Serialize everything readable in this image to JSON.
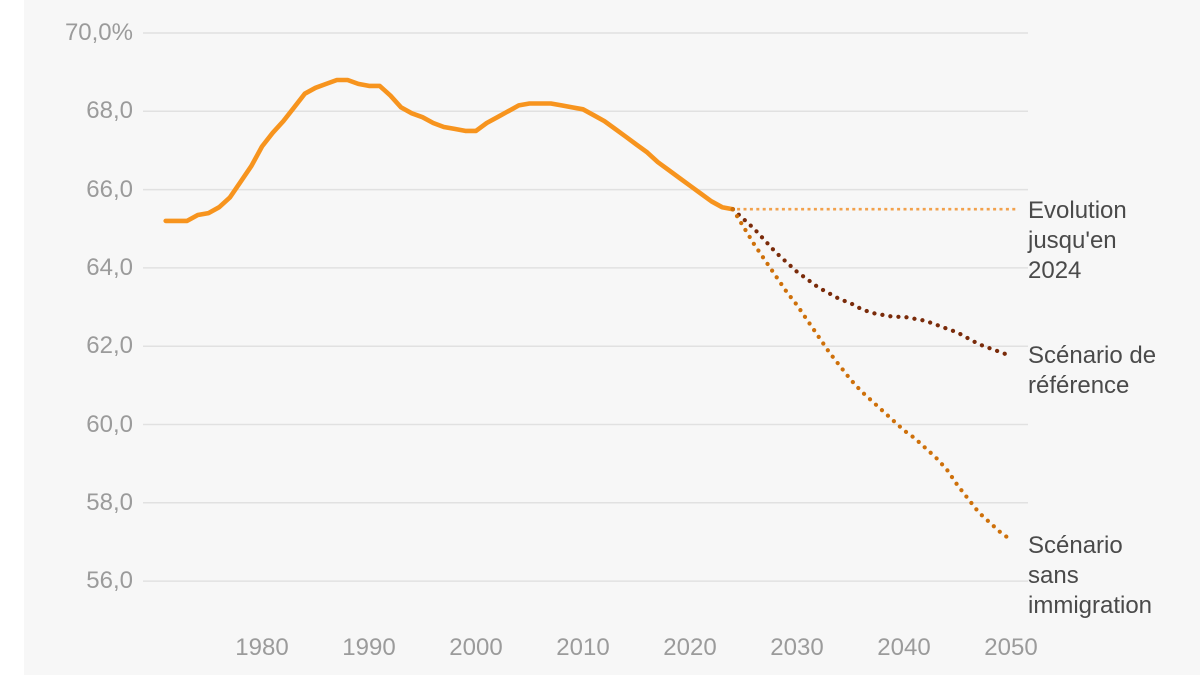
{
  "chart_data": {
    "type": "line",
    "title": "",
    "xlabel": "",
    "ylabel": "",
    "unit": "%",
    "xlim": [
      1969,
      2052
    ],
    "ylim": [
      55.5,
      70.0
    ],
    "grid": true,
    "legend_position": "right-annotations",
    "gridline_color": "#e1e1e1",
    "tick_text_color": "#9b9b9b",
    "annotation_text_color": "#4a4a4a",
    "y_ticks": [
      70,
      68,
      66,
      64,
      62,
      60,
      58,
      56
    ],
    "y_tick_labels": [
      "70,0%",
      "68,0",
      "66,0",
      "64,0",
      "62,0",
      "60,0",
      "58,0",
      "56,0"
    ],
    "x_ticks": [
      1980,
      1990,
      2000,
      2010,
      2020,
      2030,
      2040,
      2050
    ],
    "x_tick_labels": [
      "1980",
      "1990",
      "2000",
      "2010",
      "2020",
      "2030",
      "2040",
      "2050"
    ],
    "annotations": [
      {
        "id": "evolution",
        "label": "Evolution\njusqu'en\n2024"
      },
      {
        "id": "reference",
        "label": "Scénario de\nréférence"
      },
      {
        "id": "sans-immigration",
        "label": "Scénario\nsans\nimmigration"
      }
    ],
    "series": [
      {
        "name": "Evolution jusqu'en 2024",
        "style": "solid",
        "color": "#F7941E",
        "x": [
          1971,
          1972,
          1973,
          1974,
          1975,
          1976,
          1977,
          1978,
          1979,
          1980,
          1981,
          1982,
          1983,
          1984,
          1985,
          1986,
          1987,
          1988,
          1989,
          1990,
          1991,
          1992,
          1993,
          1994,
          1995,
          1996,
          1997,
          1998,
          1999,
          2000,
          2001,
          2002,
          2003,
          2004,
          2005,
          2006,
          2007,
          2008,
          2009,
          2010,
          2011,
          2012,
          2013,
          2014,
          2015,
          2016,
          2017,
          2018,
          2019,
          2020,
          2021,
          2022,
          2023,
          2024
        ],
        "values": [
          65.2,
          65.2,
          65.2,
          65.35,
          65.4,
          65.55,
          65.8,
          66.2,
          66.6,
          67.1,
          67.45,
          67.75,
          68.1,
          68.45,
          68.6,
          68.7,
          68.8,
          68.8,
          68.7,
          68.65,
          68.65,
          68.4,
          68.1,
          67.95,
          67.85,
          67.7,
          67.6,
          67.55,
          67.5,
          67.5,
          67.7,
          67.85,
          68.0,
          68.15,
          68.2,
          68.2,
          68.2,
          68.15,
          68.1,
          68.05,
          67.9,
          67.75,
          67.55,
          67.35,
          67.15,
          66.95,
          66.7,
          66.5,
          66.3,
          66.1,
          65.9,
          65.7,
          65.55,
          65.5
        ]
      },
      {
        "name": "Niveau 2024 (ligne repère)",
        "style": "dotted-guide",
        "color": "#F2A14C",
        "x": [
          2024.4,
          2050.7
        ],
        "values": [
          65.5,
          65.5
        ]
      },
      {
        "name": "Scénario de référence",
        "style": "dotted",
        "color": "#7A2B0A",
        "x": [
          2024,
          2025,
          2026,
          2027,
          2028,
          2029,
          2030,
          2031,
          2032,
          2033,
          2034,
          2035,
          2036,
          2037,
          2038,
          2039,
          2040,
          2041,
          2042,
          2043,
          2044,
          2045,
          2046,
          2047,
          2048,
          2049,
          2050
        ],
        "values": [
          65.5,
          65.25,
          65.0,
          64.7,
          64.4,
          64.15,
          63.9,
          63.7,
          63.5,
          63.35,
          63.2,
          63.1,
          62.95,
          62.85,
          62.8,
          62.75,
          62.75,
          62.7,
          62.65,
          62.55,
          62.45,
          62.35,
          62.2,
          62.05,
          61.95,
          61.85,
          61.75
        ]
      },
      {
        "name": "Scénario sans immigration",
        "style": "dotted",
        "color": "#CE700A",
        "x": [
          2024,
          2025,
          2026,
          2027,
          2028,
          2029,
          2030,
          2031,
          2032,
          2033,
          2034,
          2035,
          2036,
          2037,
          2038,
          2039,
          2040,
          2041,
          2042,
          2043,
          2044,
          2045,
          2046,
          2047,
          2048,
          2049,
          2050
        ],
        "values": [
          65.5,
          65.05,
          64.6,
          64.2,
          63.8,
          63.4,
          63.05,
          62.65,
          62.25,
          61.85,
          61.5,
          61.15,
          60.85,
          60.6,
          60.35,
          60.1,
          59.85,
          59.65,
          59.4,
          59.15,
          58.85,
          58.45,
          58.1,
          57.75,
          57.5,
          57.25,
          57.05
        ]
      }
    ]
  }
}
